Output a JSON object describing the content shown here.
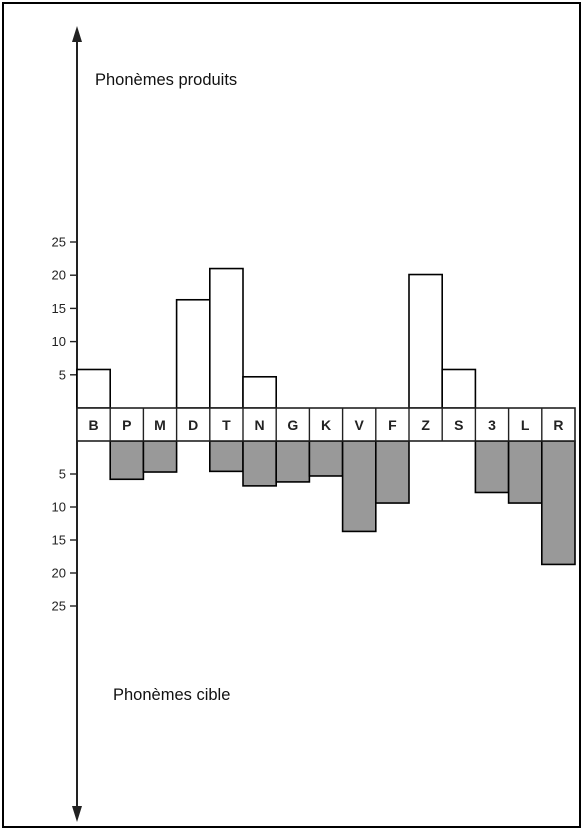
{
  "chart_data": {
    "type": "bar",
    "categories": [
      "B",
      "P",
      "M",
      "D",
      "T",
      "N",
      "G",
      "K",
      "V",
      "F",
      "Z",
      "S",
      "3",
      "L",
      "R"
    ],
    "series": [
      {
        "values": [
          5.8,
          0,
          0,
          16.3,
          21,
          4.7,
          0,
          0,
          0,
          0,
          20.1,
          5.8,
          0,
          0,
          0
        ]
      },
      {
        "values": [
          0,
          5.8,
          4.7,
          0,
          4.6,
          6.8,
          6.2,
          5.3,
          13.7,
          9.4,
          0,
          0,
          7.8,
          9.4,
          18.7
        ]
      }
    ],
    "upper_yticks": [
      "5",
      "10",
      "15",
      "20",
      "25"
    ],
    "lower_yticks": [
      "5",
      "10",
      "15",
      "20",
      "25"
    ],
    "upper_label": "Phonèmes produits",
    "lower_label": "Phonèmes cible",
    "ylim": [
      0,
      25
    ],
    "colors": {
      "upper_fill": "#ffffff",
      "lower_fill": "#999999",
      "stroke": "#000000",
      "frame": "#000000"
    }
  }
}
